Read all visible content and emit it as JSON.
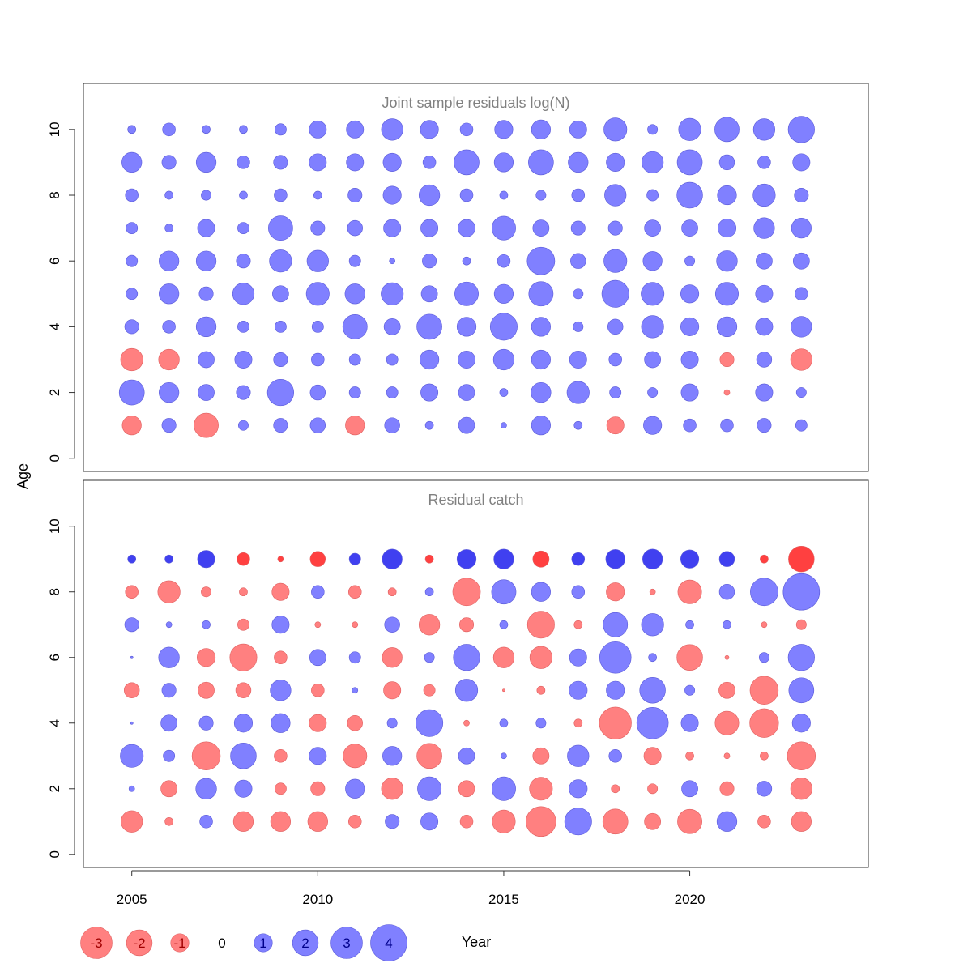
{
  "chart_data": {
    "type": "scatter",
    "xlabel": "Year",
    "ylabel": "Age",
    "x_ticks": [
      2005,
      2010,
      2015,
      2020
    ],
    "y_ticks": [
      0,
      2,
      4,
      6,
      8,
      10
    ],
    "xlim": [
      2003.7,
      2024.8
    ],
    "ylim": [
      -0.4,
      11.4
    ],
    "years": [
      2005,
      2006,
      2007,
      2008,
      2009,
      2010,
      2011,
      2012,
      2013,
      2014,
      2015,
      2016,
      2017,
      2018,
      2019,
      2020,
      2021,
      2022,
      2023
    ],
    "colors": {
      "negative": "#ff8080",
      "positive": "#8080ff",
      "negative_solid": "#ff4040",
      "positive_solid": "#4040f0"
    },
    "legend": {
      "position": "bottom-left",
      "labels": [
        "-3",
        "-2",
        "-1",
        "0",
        "1",
        "2",
        "3",
        "4"
      ],
      "values": [
        -3,
        -2,
        -1,
        0,
        1,
        2,
        3,
        4
      ]
    },
    "panels": [
      {
        "title": "Joint sample residuals log(N)",
        "ages": [
          1,
          2,
          3,
          4,
          5,
          6,
          7,
          8,
          9,
          10
        ],
        "solid_ages": [],
        "residuals": {
          "1": [
            -1.1,
            0.6,
            -1.8,
            0.3,
            0.6,
            0.7,
            -1.1,
            0.7,
            0.2,
            0.8,
            0.1,
            1.1,
            0.2,
            -0.9,
            1.0,
            0.5,
            0.5,
            0.6,
            0.4
          ],
          "2": [
            1.9,
            1.2,
            0.8,
            0.6,
            2.1,
            0.7,
            0.4,
            0.4,
            0.9,
            0.8,
            0.2,
            1.2,
            1.5,
            0.4,
            0.3,
            0.9,
            -0.1,
            0.9,
            0.3
          ],
          "3": [
            -1.5,
            -1.3,
            0.8,
            0.9,
            0.6,
            0.5,
            0.4,
            0.4,
            1.1,
            0.9,
            1.3,
            1.1,
            0.9,
            0.5,
            0.8,
            0.9,
            -0.6,
            0.7,
            -1.4
          ],
          "4": [
            0.6,
            0.5,
            1.2,
            0.4,
            0.4,
            0.4,
            1.8,
            0.8,
            1.9,
            1.1,
            2.2,
            1.1,
            0.3,
            0.7,
            1.5,
            1.0,
            1.2,
            0.9,
            1.3
          ],
          "5": [
            0.4,
            1.2,
            0.6,
            1.4,
            0.8,
            1.6,
            1.2,
            1.5,
            0.8,
            1.7,
            1.1,
            1.8,
            0.3,
            2.2,
            1.6,
            1.0,
            1.6,
            0.9,
            0.5
          ],
          "6": [
            0.4,
            1.2,
            1.2,
            0.6,
            1.5,
            1.4,
            0.4,
            0.1,
            0.6,
            0.2,
            0.5,
            2.3,
            0.7,
            1.6,
            1.1,
            0.3,
            1.3,
            0.8,
            0.8
          ],
          "7": [
            0.4,
            0.2,
            0.9,
            0.4,
            1.8,
            0.6,
            0.7,
            0.9,
            0.9,
            0.9,
            1.7,
            0.8,
            0.6,
            0.6,
            0.8,
            0.8,
            1.0,
            1.3,
            1.2
          ],
          "8": [
            0.5,
            0.2,
            0.3,
            0.2,
            0.5,
            0.2,
            0.6,
            1.0,
            1.3,
            0.5,
            0.2,
            0.3,
            0.5,
            1.4,
            0.4,
            2.0,
            1.1,
            1.5,
            0.6
          ],
          "9": [
            1.2,
            0.6,
            1.2,
            0.5,
            0.6,
            0.9,
            0.9,
            1.0,
            0.5,
            1.9,
            1.1,
            1.9,
            1.2,
            1.0,
            1.4,
            1.9,
            0.7,
            0.5,
            0.9
          ],
          "10": [
            0.2,
            0.5,
            0.2,
            0.2,
            0.4,
            0.9,
            0.9,
            1.4,
            1.0,
            0.5,
            1.0,
            1.1,
            0.9,
            1.6,
            0.3,
            1.5,
            1.8,
            1.4,
            2.1
          ]
        }
      },
      {
        "title": "Residual catch",
        "ages": [
          1,
          2,
          3,
          4,
          5,
          6,
          7,
          8,
          9
        ],
        "solid_ages": [
          9
        ],
        "residuals": {
          "1": [
            -1.4,
            -0.2,
            0.5,
            -1.2,
            -1.2,
            -1.2,
            -0.5,
            0.6,
            0.9,
            -0.5,
            -1.6,
            -2.7,
            2.2,
            -1.9,
            -0.8,
            -1.8,
            1.2,
            -0.5,
            -1.2
          ],
          "2": [
            0.1,
            -0.8,
            1.3,
            0.9,
            -0.4,
            -0.6,
            1.1,
            -1.4,
            1.7,
            -0.8,
            1.7,
            -1.6,
            1.0,
            -0.2,
            -0.3,
            0.8,
            -0.6,
            0.7,
            -1.4
          ],
          "3": [
            1.6,
            0.4,
            -2.4,
            2.0,
            -0.5,
            0.9,
            -1.7,
            1.1,
            -1.9,
            0.8,
            0.1,
            -0.8,
            1.4,
            0.5,
            -0.9,
            -0.2,
            -0.1,
            -0.2,
            -2.4
          ],
          "4": [
            0.02,
            0.8,
            0.6,
            1.0,
            1.1,
            -0.9,
            -0.7,
            0.3,
            2.2,
            -0.1,
            0.2,
            0.3,
            -0.2,
            -3.1,
            3.0,
            0.9,
            -1.7,
            -2.5,
            1.0
          ],
          "5": [
            -0.7,
            0.6,
            -0.8,
            -0.7,
            1.3,
            -0.5,
            0.1,
            -0.9,
            -0.4,
            1.5,
            -0.02,
            -0.2,
            1.0,
            1.0,
            2.0,
            0.3,
            -0.8,
            -2.4,
            1.9
          ],
          "6": [
            0.02,
            1.3,
            -1.0,
            -2.2,
            -0.5,
            0.8,
            0.4,
            -1.2,
            0.3,
            2.1,
            -1.3,
            -1.5,
            0.9,
            3.0,
            0.2,
            -2.0,
            -0.05,
            0.3,
            2.1
          ],
          "7": [
            0.6,
            0.1,
            0.2,
            -0.4,
            0.9,
            -0.1,
            -0.1,
            0.7,
            -1.3,
            -0.6,
            0.2,
            -2.2,
            -0.2,
            1.8,
            1.5,
            0.2,
            0.2,
            -0.1,
            -0.3
          ],
          "8": [
            -0.5,
            -1.5,
            -0.3,
            -0.2,
            -0.9,
            0.5,
            -0.5,
            -0.2,
            0.2,
            -2.3,
            1.8,
            1.1,
            0.5,
            -1.0,
            -0.1,
            -1.7,
            0.7,
            2.3,
            4.0
          ],
          "9": [
            0.2,
            0.2,
            0.9,
            -0.5,
            -0.1,
            -0.7,
            0.4,
            1.2,
            -0.2,
            1.1,
            1.2,
            -0.8,
            0.5,
            1.1,
            1.2,
            1.0,
            0.7,
            -0.2,
            -2.0
          ]
        }
      }
    ]
  }
}
